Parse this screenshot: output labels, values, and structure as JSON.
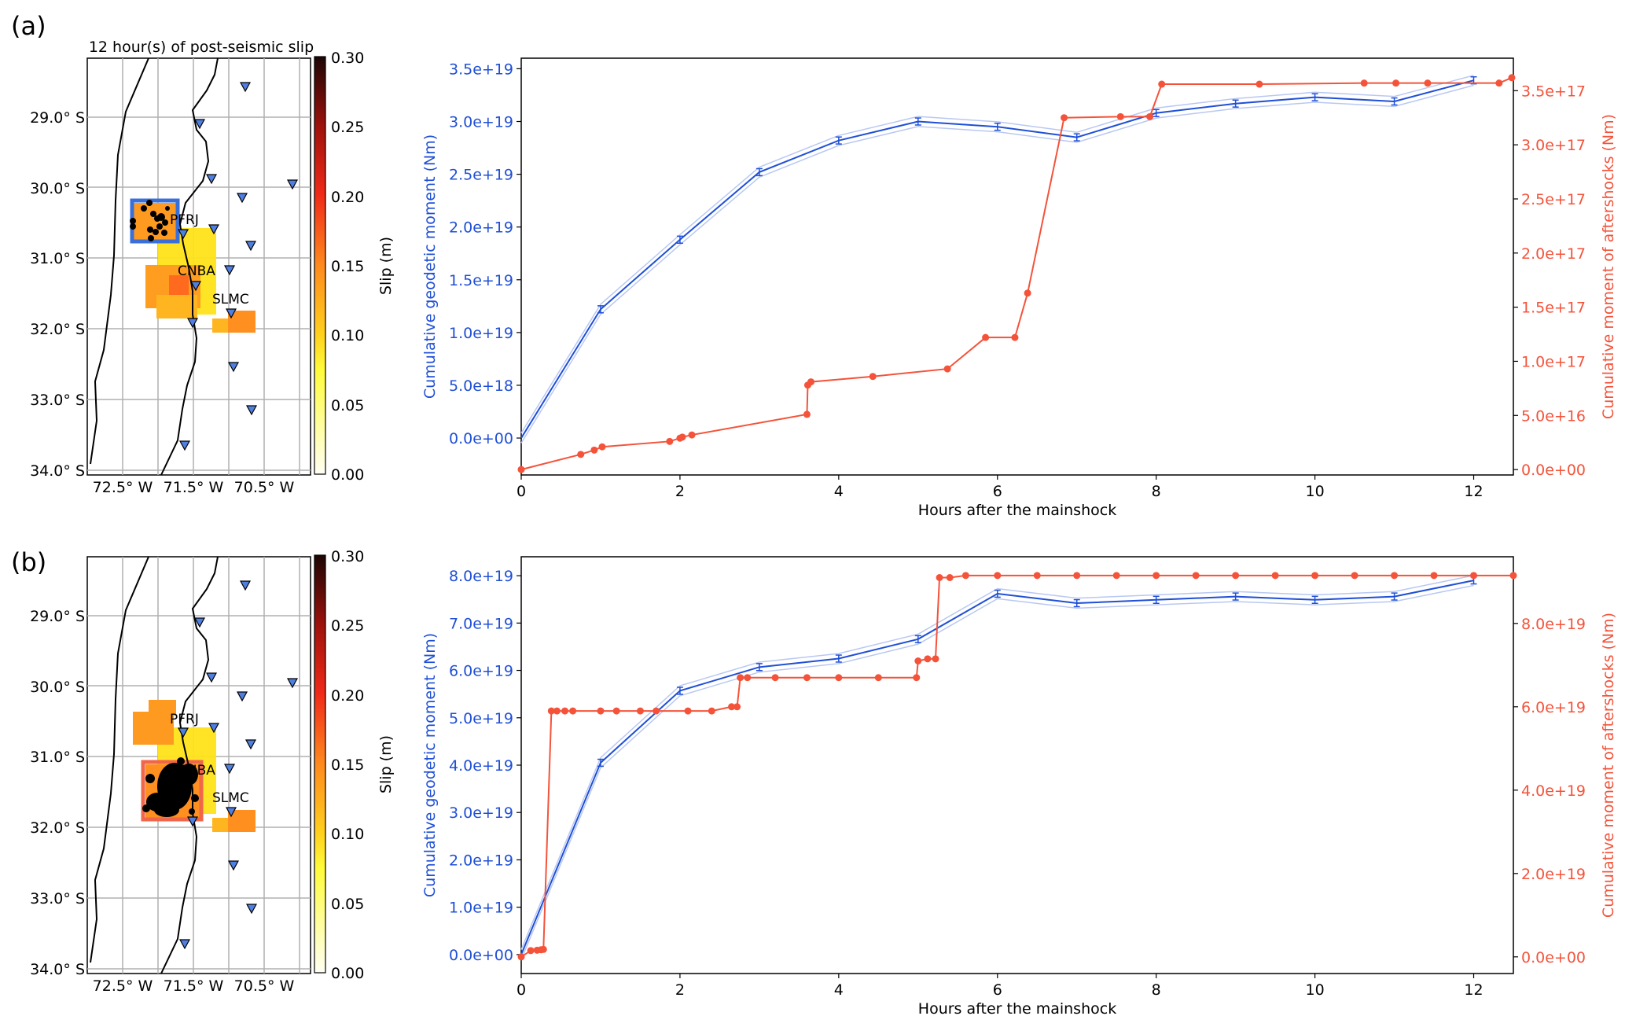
{
  "panels": [
    {
      "label": "(a)",
      "map": {
        "title": "12 hour(s) of post-seismic slip",
        "lat_ticks": [
          "29.0° S",
          "30.0° S",
          "31.0° S",
          "32.0° S",
          "33.0° S",
          "34.0° S"
        ],
        "lon_ticks": [
          "72.5° W",
          "71.5° W",
          "70.5° W"
        ],
        "stations": [
          "PFRJ",
          "CNBA",
          "SLMC"
        ],
        "highlight_box_color": "#3a6fd8",
        "colorbar": {
          "label": "Slip  (m)",
          "ticks": [
            "0.30",
            "0.25",
            "0.20",
            "0.15",
            "0.10",
            "0.05",
            "0.00"
          ],
          "range": [
            0,
            0.3
          ]
        }
      }
    },
    {
      "label": "(b)",
      "map": {
        "title": "",
        "lat_ticks": [
          "29.0° S",
          "30.0° S",
          "31.0° S",
          "32.0° S",
          "33.0° S",
          "34.0° S"
        ],
        "lon_ticks": [
          "72.5° W",
          "71.5° W",
          "70.5° W"
        ],
        "stations": [
          "PFRJ",
          "CNBA",
          "SLMC"
        ],
        "highlight_box_color": "#f0664a",
        "colorbar": {
          "label": "Slip  (m)",
          "ticks": [
            "0.30",
            "0.25",
            "0.20",
            "0.15",
            "0.10",
            "0.05",
            "0.00"
          ],
          "range": [
            0,
            0.3
          ]
        }
      }
    }
  ],
  "colors": {
    "geodetic": "#1f4fd6",
    "aftershock": "#f4533a"
  },
  "chart_data": [
    {
      "type": "line",
      "panel": "(a)",
      "xlabel": "Hours after the mainshock",
      "ylabel": "Cumulative geodetic moment (Nm)",
      "ylabel_right": "Cumulative moment of aftershocks (Nm)",
      "xlim": [
        0,
        12.5
      ],
      "xticks": [
        "0",
        "2",
        "4",
        "6",
        "8",
        "10",
        "12"
      ],
      "ylim": [
        -3.5e+18,
        3.6e+19
      ],
      "yticks": [
        "0.0e+00",
        "5.0e+18",
        "1.0e+19",
        "1.5e+19",
        "2.0e+19",
        "2.5e+19",
        "3.0e+19",
        "3.5e+19"
      ],
      "ylim_right": [
        -5000000000000000.0,
        3.8e+17
      ],
      "yticks_right": [
        "0.0e+00",
        "5.0e+16",
        "1.0e+17",
        "1.5e+17",
        "2.0e+17",
        "2.5e+17",
        "3.0e+17",
        "3.5e+17"
      ],
      "series": [
        {
          "name": "Cumulative geodetic moment",
          "axis": "left",
          "error_bars": true,
          "x": [
            0,
            1,
            2,
            3,
            4,
            5,
            6,
            7,
            8,
            9,
            10,
            11,
            12
          ],
          "y": [
            0,
            1.22e+19,
            1.88e+19,
            2.52e+19,
            2.82e+19,
            3e+19,
            2.95e+19,
            2.85e+19,
            3.08e+19,
            3.17e+19,
            3.23e+19,
            3.19e+19,
            3.39e+19
          ]
        },
        {
          "name": "Cumulative moment of aftershocks",
          "axis": "right",
          "x": [
            0,
            0.75,
            0.92,
            1.02,
            1.87,
            2.0,
            2.03,
            2.15,
            3.6,
            3.61,
            3.65,
            4.43,
            5.37,
            5.85,
            6.22,
            6.38,
            6.84,
            7.55,
            7.92,
            8.07,
            9.3,
            10.62,
            11.02,
            11.42,
            12.32,
            12.48
          ],
          "y": [
            0,
            1.4e+16,
            1.8e+16,
            2.1e+16,
            2.6e+16,
            2.9e+16,
            3e+16,
            3.2e+16,
            5.1e+16,
            7.8e+16,
            8.1e+16,
            8.6e+16,
            9.3e+16,
            1.22e+17,
            1.22e+17,
            1.63e+17,
            3.25e+17,
            3.26e+17,
            3.26e+17,
            3.56e+17,
            3.56e+17,
            3.57e+17,
            3.57e+17,
            3.57e+17,
            3.57e+17,
            3.62e+17
          ]
        }
      ]
    },
    {
      "type": "line",
      "panel": "(b)",
      "xlabel": "Hours after the mainshock",
      "ylabel": "Cumulative geodetic moment (Nm)",
      "ylabel_right": "Cumulative moment of aftershocks (Nm)",
      "xlim": [
        0,
        12.5
      ],
      "xticks": [
        "0",
        "2",
        "4",
        "6",
        "8",
        "10",
        "12"
      ],
      "ylim": [
        -4e+18,
        8.4e+19
      ],
      "yticks": [
        "0.0e+00",
        "1.0e+19",
        "2.0e+19",
        "3.0e+19",
        "4.0e+19",
        "5.0e+19",
        "6.0e+19",
        "7.0e+19",
        "8.0e+19"
      ],
      "ylim_right": [
        -4e+18,
        9.6e+19
      ],
      "yticks_right": [
        "0.0e+00",
        "2.0e+19",
        "4.0e+19",
        "6.0e+19",
        "8.0e+19"
      ],
      "series": [
        {
          "name": "Cumulative geodetic moment",
          "axis": "left",
          "error_bars": true,
          "x": [
            0,
            1,
            2,
            3,
            4,
            5,
            6,
            7,
            8,
            9,
            10,
            11,
            12
          ],
          "y": [
            0,
            4.05e+19,
            5.57e+19,
            6.07e+19,
            6.25e+19,
            6.66e+19,
            7.62e+19,
            7.42e+19,
            7.49e+19,
            7.56e+19,
            7.49e+19,
            7.56e+19,
            7.9e+19
          ]
        },
        {
          "name": "Cumulative moment of aftershocks",
          "axis": "right",
          "x": [
            0,
            0.12,
            0.2,
            0.25,
            0.28,
            0.38,
            0.45,
            0.55,
            0.65,
            1.0,
            1.2,
            1.5,
            1.7,
            2.1,
            2.4,
            2.65,
            2.72,
            2.76,
            2.85,
            3.2,
            3.6,
            4.0,
            4.5,
            4.98,
            5.0,
            5.12,
            5.22,
            5.27,
            5.4,
            5.6,
            6.0,
            6.5,
            7.0,
            7.5,
            8.0,
            8.5,
            9.0,
            9.5,
            10.0,
            10.5,
            11.0,
            11.5,
            12.0,
            12.5
          ],
          "y": [
            0,
            1.5e+18,
            1.6e+18,
            1.7e+18,
            1.8e+18,
            5.9e+19,
            5.9e+19,
            5.9e+19,
            5.9e+19,
            5.9e+19,
            5.9e+19,
            5.9e+19,
            5.9e+19,
            5.9e+19,
            5.9e+19,
            6e+19,
            6e+19,
            6.7e+19,
            6.7e+19,
            6.7e+19,
            6.7e+19,
            6.7e+19,
            6.7e+19,
            6.7e+19,
            7.1e+19,
            7.15e+19,
            7.15e+19,
            9.1e+19,
            9.1e+19,
            9.15e+19,
            9.15e+19,
            9.15e+19,
            9.15e+19,
            9.15e+19,
            9.15e+19,
            9.15e+19,
            9.15e+19,
            9.15e+19,
            9.15e+19,
            9.15e+19,
            9.15e+19,
            9.15e+19,
            9.15e+19,
            9.15e+19
          ]
        }
      ]
    }
  ]
}
